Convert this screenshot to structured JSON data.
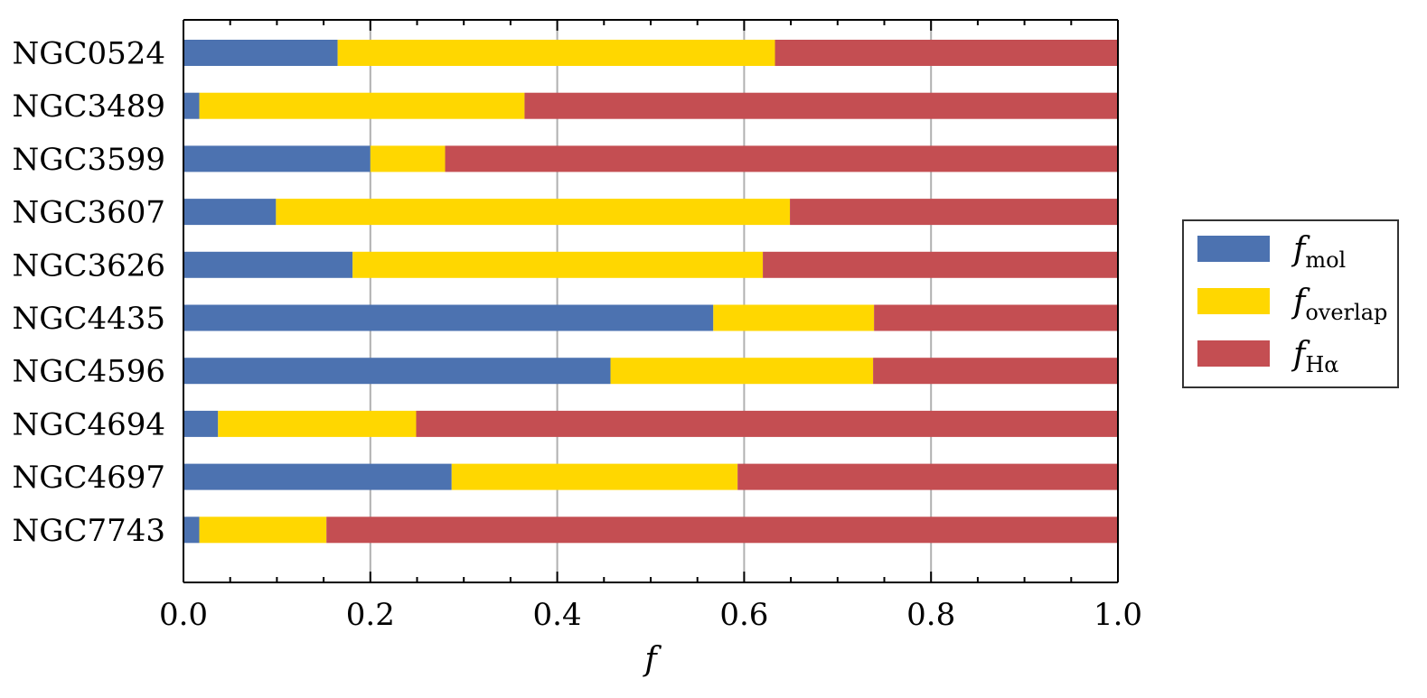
{
  "chart_data": {
    "type": "bar",
    "orientation": "horizontal",
    "stacked": true,
    "categories": [
      "NGC0524",
      "NGC3489",
      "NGC3599",
      "NGC3607",
      "NGC3626",
      "NGC4435",
      "NGC4596",
      "NGC4694",
      "NGC4697",
      "NGC7743"
    ],
    "series": [
      {
        "name": "f",
        "subscript": "mol",
        "color": "#4c72b0",
        "values": [
          0.165,
          0.017,
          0.2,
          0.099,
          0.181,
          0.567,
          0.457,
          0.037,
          0.287,
          0.017
        ]
      },
      {
        "name": "f",
        "subscript": "overlap",
        "color": "#ffd700",
        "values": [
          0.468,
          0.348,
          0.08,
          0.55,
          0.439,
          0.172,
          0.281,
          0.212,
          0.306,
          0.136
        ]
      },
      {
        "name": "f",
        "subscript": "Hα",
        "color": "#c44e52",
        "values": [
          0.367,
          0.635,
          0.72,
          0.351,
          0.38,
          0.261,
          0.262,
          0.751,
          0.407,
          0.847
        ]
      }
    ],
    "xlabel": "f",
    "ylabel": "",
    "xlim": [
      0,
      1.0
    ],
    "xticks": [
      "0.0",
      "0.2",
      "0.4",
      "0.6",
      "0.8",
      "1.0"
    ],
    "grid": "vertical",
    "legend_position": "right"
  }
}
